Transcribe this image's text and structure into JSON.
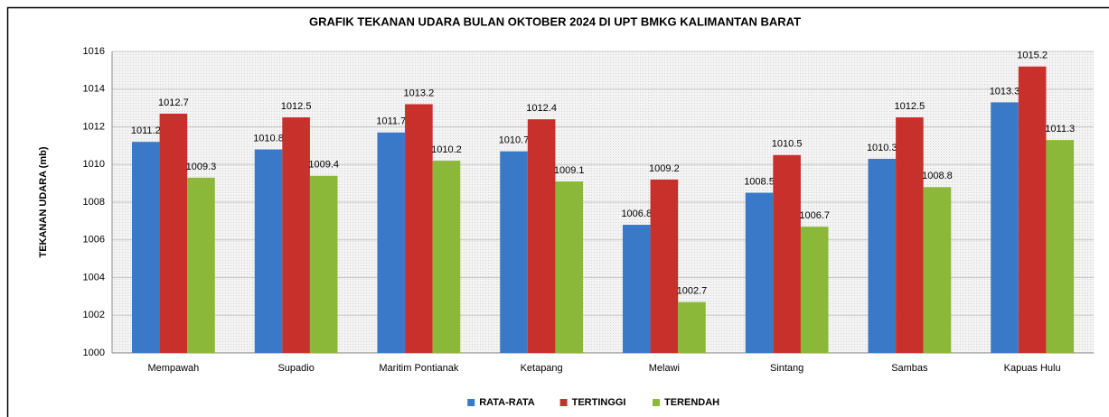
{
  "chart_data": {
    "type": "bar",
    "title": "GRAFIK TEKANAN UDARA BULAN OKTOBER 2024 DI UPT BMKG KALIMANTAN BARAT",
    "y_label": "TEKANAN UDARA (mb)",
    "categories": [
      "Mempawah",
      "Supadio",
      "Maritim Pontianak",
      "Ketapang",
      "Melawi",
      "Sintang",
      "Sambas",
      "Kapuas Hulu"
    ],
    "series": [
      {
        "name": "RATA-RATA",
        "color": "#3a78c8",
        "values": [
          1011.2,
          1010.8,
          1011.7,
          1010.7,
          1006.8,
          1008.5,
          1010.3,
          1013.3
        ]
      },
      {
        "name": "TERTINGGI",
        "color": "#c8302b",
        "values": [
          1012.7,
          1012.5,
          1013.2,
          1012.4,
          1009.2,
          1010.5,
          1012.5,
          1015.2
        ]
      },
      {
        "name": "TERENDAH",
        "color": "#8cb83a",
        "values": [
          1009.3,
          1009.4,
          1010.2,
          1009.1,
          1002.7,
          1006.7,
          1008.8,
          1011.3
        ]
      }
    ],
    "ylim": [
      1000,
      1016
    ],
    "yticks": [
      1000,
      1002,
      1004,
      1006,
      1008,
      1010,
      1012,
      1014,
      1016
    ],
    "grid": true,
    "legend_position": "bottom"
  }
}
